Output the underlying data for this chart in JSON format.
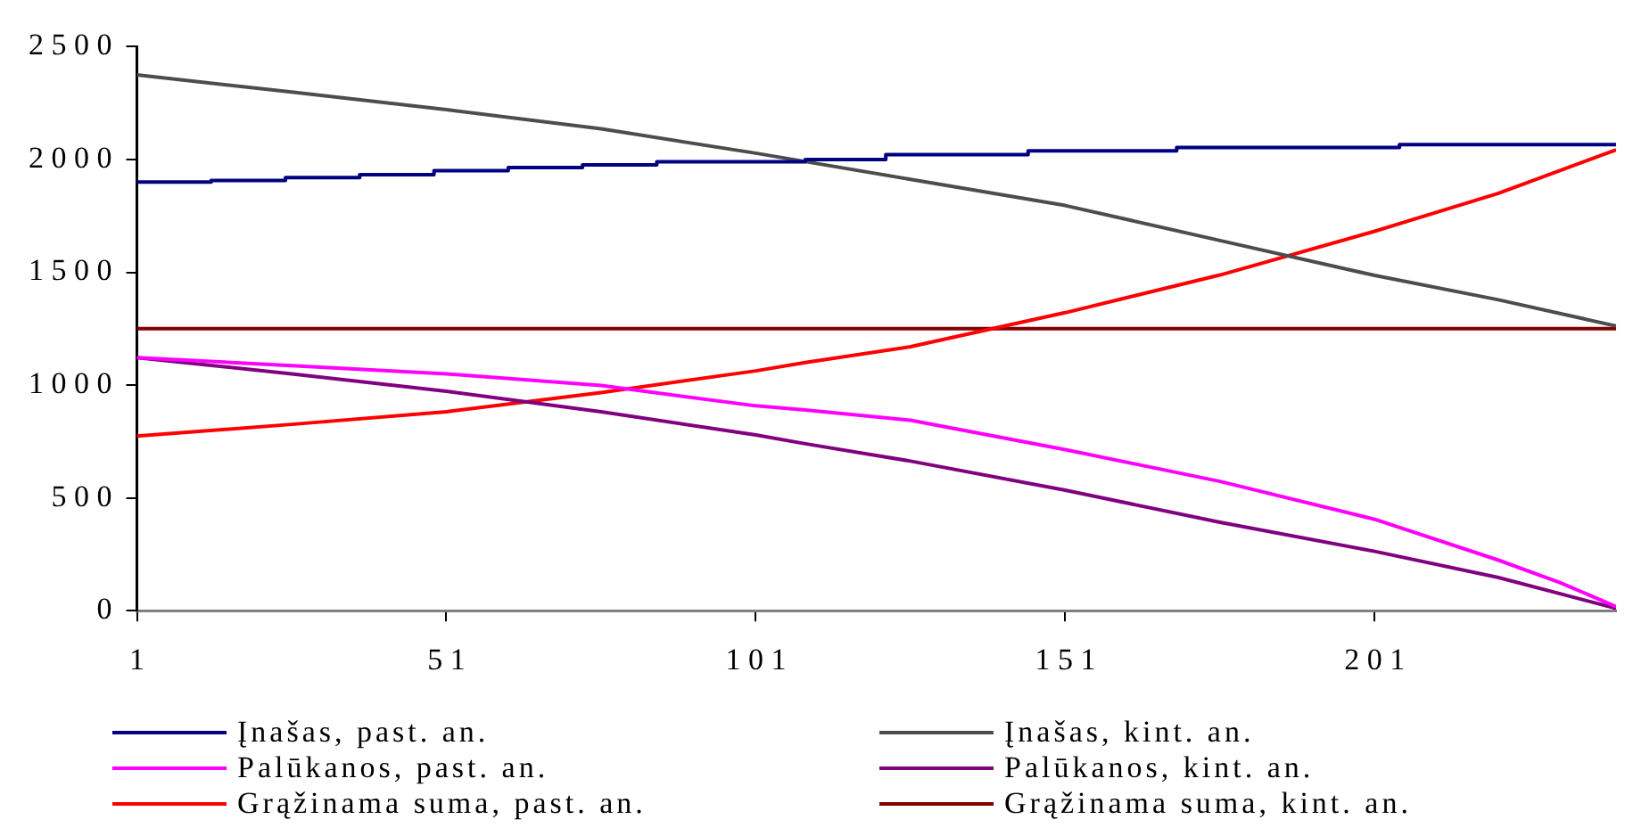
{
  "chart_data": {
    "type": "line",
    "xlim": [
      1,
      240
    ],
    "xticks": [
      1,
      51,
      101,
      151,
      201
    ],
    "ylim": [
      0,
      2500
    ],
    "yticks": [
      0,
      500,
      1000,
      1500,
      2000,
      2500
    ],
    "grid": false,
    "legend": "bottom",
    "marker": "none",
    "line_style": "solid",
    "series": [
      {
        "name": "Įnašas, past. an.",
        "color": "#000080",
        "type": "step",
        "x": [
          1,
          13,
          25,
          37,
          49,
          61,
          73,
          85,
          109,
          122,
          145,
          169,
          205,
          240
        ],
        "values": [
          1900,
          1907,
          1920,
          1933,
          1950,
          1964,
          1976,
          1990,
          2000,
          2022,
          2038,
          2053,
          2066,
          2066
        ]
      },
      {
        "name": "Įnašas, kint. an.",
        "color": "#4d4d4d",
        "x": [
          1,
          26,
          51,
          76,
          101,
          126,
          151,
          176,
          201,
          221,
          240
        ],
        "values": [
          2375,
          2299,
          2221,
          2136,
          2028,
          1912,
          1796,
          1641,
          1486,
          1378,
          1262
        ]
      },
      {
        "name": "Palūkanos, past. an.",
        "color": "#ff00ff",
        "x": [
          1,
          26,
          51,
          76,
          101,
          109,
          126,
          151,
          176,
          201,
          221,
          231,
          240
        ],
        "values": [
          1122,
          1086,
          1050,
          998,
          908,
          890,
          844,
          714,
          573,
          405,
          224,
          124,
          18
        ]
      },
      {
        "name": "Palūkanos, kint. an.",
        "color": "#800080",
        "x": [
          1,
          26,
          51,
          76,
          101,
          109,
          126,
          151,
          176,
          201,
          221,
          240
        ],
        "values": [
          1122,
          1050,
          973,
          882,
          779,
          740,
          663,
          534,
          392,
          263,
          147,
          10
        ]
      },
      {
        "name": "Grąžinama suma, past. an.",
        "color": "#ff0000",
        "x": [
          1,
          26,
          51,
          76,
          101,
          109,
          126,
          151,
          176,
          201,
          221,
          240
        ],
        "values": [
          774,
          826,
          882,
          967,
          1063,
          1100,
          1170,
          1321,
          1488,
          1682,
          1850,
          2043
        ]
      },
      {
        "name": "Grąžinama suma, kint. an.",
        "color": "#800000",
        "x": [
          1,
          240
        ],
        "values": [
          1250,
          1250
        ]
      }
    ]
  }
}
